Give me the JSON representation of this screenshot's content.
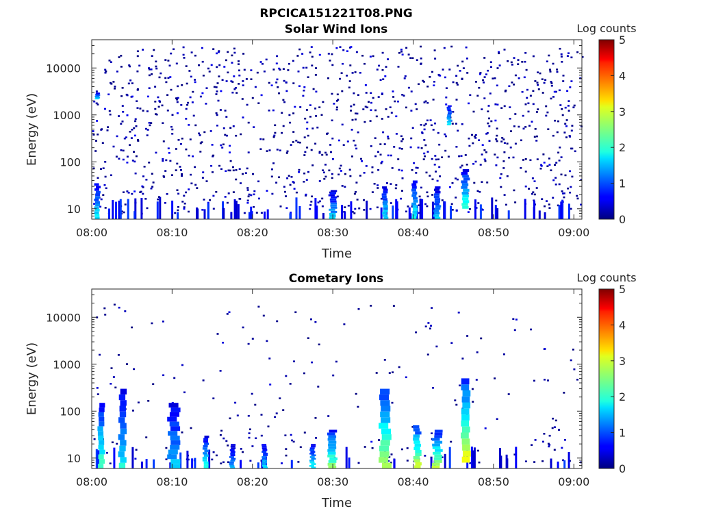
{
  "figure": {
    "title": "RPCICA151221T08.PNG"
  },
  "chart_data": [
    {
      "type": "heatmap",
      "title": "Solar Wind Ions",
      "xlabel": "Time",
      "ylabel": "Energy (eV)",
      "x_range": [
        "08:00",
        "09:01"
      ],
      "x_ticks": [
        "08:00",
        "08:10",
        "08:20",
        "08:30",
        "08:40",
        "08:50",
        "09:00"
      ],
      "y_scale": "log",
      "ylim": [
        6,
        40000
      ],
      "y_ticks": [
        "10",
        "100",
        "1000",
        "10000"
      ],
      "colorbar": {
        "label": "Log counts",
        "min": 0,
        "max": 5,
        "ticks": [
          "0",
          "1",
          "2",
          "3",
          "4",
          "5"
        ],
        "colormap": "jet"
      },
      "background_noise": {
        "energy_range_eV": [
          8,
          30000
        ],
        "log_counts": [
          0,
          0.7
        ]
      },
      "features": [
        {
          "time_min": 0.7,
          "width_min": 0.6,
          "energy_min": 6,
          "energy_max": 35,
          "log_counts": 1.8
        },
        {
          "time_min": 0.7,
          "width_min": 0.5,
          "energy_min": 2200,
          "energy_max": 3000,
          "log_counts": 1.8
        },
        {
          "time_min": 30.0,
          "width_min": 0.8,
          "energy_min": 6,
          "energy_max": 25,
          "log_counts": 1.6
        },
        {
          "time_min": 36.5,
          "width_min": 0.6,
          "energy_min": 6,
          "energy_max": 30,
          "log_counts": 1.8
        },
        {
          "time_min": 40.2,
          "width_min": 0.6,
          "energy_min": 6,
          "energy_max": 40,
          "log_counts": 1.9
        },
        {
          "time_min": 43.0,
          "width_min": 0.7,
          "energy_min": 6,
          "energy_max": 30,
          "log_counts": 1.6
        },
        {
          "time_min": 44.5,
          "width_min": 0.5,
          "energy_min": 600,
          "energy_max": 1600,
          "log_counts": 1.8
        },
        {
          "time_min": 46.5,
          "width_min": 0.8,
          "energy_min": 10,
          "energy_max": 70,
          "log_counts": 2.1
        }
      ]
    },
    {
      "type": "heatmap",
      "title": "Cometary Ions",
      "xlabel": "Time",
      "ylabel": "Energy (eV)",
      "x_range": [
        "08:00",
        "09:01"
      ],
      "x_ticks": [
        "08:00",
        "08:10",
        "08:20",
        "08:30",
        "08:40",
        "08:50",
        "09:00"
      ],
      "y_scale": "log",
      "ylim": [
        6,
        40000
      ],
      "y_ticks": [
        "10",
        "100",
        "1000",
        "10000"
      ],
      "colorbar": {
        "label": "Log counts",
        "min": 0,
        "max": 5,
        "ticks": [
          "0",
          "1",
          "2",
          "3",
          "4",
          "5"
        ],
        "colormap": "jet"
      },
      "background_noise": {
        "energy_range_eV": [
          8,
          20000
        ],
        "log_counts": [
          0,
          0.6
        ]
      },
      "features": [
        {
          "time_min": 1.2,
          "width_min": 0.7,
          "energy_min": 6,
          "energy_max": 150,
          "log_counts": 2.3
        },
        {
          "time_min": 3.8,
          "width_min": 0.8,
          "energy_min": 6,
          "energy_max": 300,
          "log_counts": 1.9
        },
        {
          "time_min": 10.2,
          "width_min": 1.2,
          "energy_min": 6,
          "energy_max": 150,
          "log_counts": 1.6
        },
        {
          "time_min": 14.2,
          "width_min": 0.6,
          "energy_min": 6,
          "energy_max": 30,
          "log_counts": 1.9
        },
        {
          "time_min": 17.5,
          "width_min": 0.6,
          "energy_min": 6,
          "energy_max": 20,
          "log_counts": 1.4
        },
        {
          "time_min": 21.5,
          "width_min": 0.6,
          "energy_min": 6,
          "energy_max": 20,
          "log_counts": 1.7
        },
        {
          "time_min": 27.5,
          "width_min": 0.6,
          "energy_min": 6,
          "energy_max": 20,
          "log_counts": 1.9
        },
        {
          "time_min": 30.0,
          "width_min": 1.0,
          "energy_min": 6,
          "energy_max": 40,
          "log_counts": 2.5
        },
        {
          "time_min": 36.5,
          "width_min": 1.2,
          "energy_min": 6,
          "energy_max": 300,
          "log_counts": 2.8
        },
        {
          "time_min": 40.5,
          "width_min": 0.8,
          "energy_min": 6,
          "energy_max": 50,
          "log_counts": 2.9
        },
        {
          "time_min": 43.0,
          "width_min": 1.0,
          "energy_min": 6,
          "energy_max": 40,
          "log_counts": 2.7
        },
        {
          "time_min": 46.5,
          "width_min": 1.0,
          "energy_min": 8,
          "energy_max": 500,
          "log_counts": 3.0
        }
      ]
    }
  ]
}
